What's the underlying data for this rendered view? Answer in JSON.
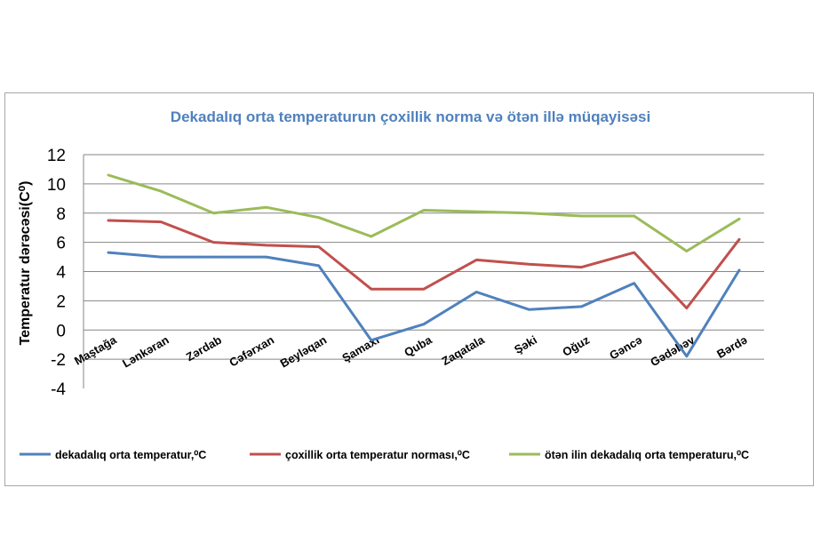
{
  "chart_data": {
    "type": "line",
    "title": "Dekadalıq orta temperaturun çoxillik  norma və ötən illə müqayisəsi",
    "ylabel": "Temperatur dərəcəsi(C⁰)",
    "xlabel": "",
    "ylim": [
      -4,
      12
    ],
    "yticks": [
      -4,
      -2,
      0,
      2,
      4,
      6,
      8,
      10,
      12
    ],
    "grid": true,
    "legend_position": "bottom",
    "categories": [
      "Maştağa",
      "Lənkəran",
      "Zərdab",
      "Cəfərxan",
      "Beyləqan",
      "Şamaxı",
      "Quba",
      "Zaqatala",
      "Şəki",
      "Oğuz",
      "Gəncə",
      "Gədəbəy",
      "Bərdə"
    ],
    "series": [
      {
        "name": "dekadalıq orta temperatur,⁰C",
        "color": "#4f81bd",
        "values": [
          5.3,
          5.0,
          5.0,
          5.0,
          4.4,
          -0.7,
          0.4,
          2.6,
          1.4,
          1.6,
          3.2,
          -1.8,
          4.1
        ]
      },
      {
        "name": "çoxillik orta temperatur norması,⁰C",
        "color": "#c0504d",
        "values": [
          7.5,
          7.4,
          6.0,
          5.8,
          5.7,
          2.8,
          2.8,
          4.8,
          4.5,
          4.3,
          5.3,
          1.5,
          6.2
        ]
      },
      {
        "name": "ötən ilin dekadalıq orta temperaturu,⁰C",
        "color": "#9bbb59",
        "values": [
          10.6,
          9.5,
          8.0,
          8.4,
          7.7,
          6.4,
          8.2,
          8.1,
          8.0,
          7.8,
          7.8,
          5.4,
          7.6
        ]
      }
    ]
  }
}
